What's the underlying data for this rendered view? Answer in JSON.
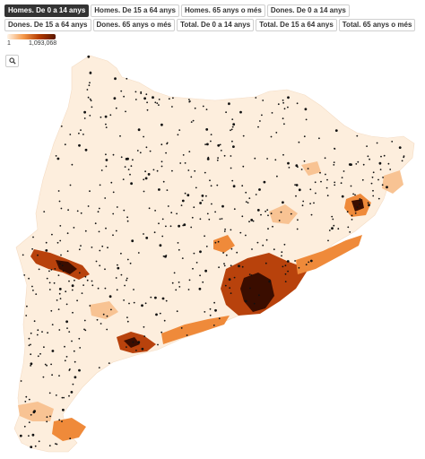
{
  "tabs": [
    {
      "label": "Homes. De 0 a 14 anys",
      "active": true
    },
    {
      "label": "Homes. De 15 a 64 anys",
      "active": false
    },
    {
      "label": "Homes. 65 anys o més",
      "active": false
    },
    {
      "label": "Dones. De 0 a 14 anys",
      "active": false
    },
    {
      "label": "Dones. De 15 a 64 anys",
      "active": false
    },
    {
      "label": "Dones. 65 anys o més",
      "active": false
    },
    {
      "label": "Total. De 0 a 14 anys",
      "active": false
    },
    {
      "label": "Total. De 15 a 64 anys",
      "active": false
    },
    {
      "label": "Total. 65 anys o més",
      "active": false
    }
  ],
  "legend": {
    "min_label": "1",
    "max_label": "1,093,068"
  },
  "search": {
    "icon": "search-icon"
  },
  "colors": {
    "base": "#fdeedd",
    "light": "#f8c393",
    "medium": "#ef8a3a",
    "dark": "#b8420c",
    "darkest": "#3a0d00",
    "dot": "#111111"
  }
}
